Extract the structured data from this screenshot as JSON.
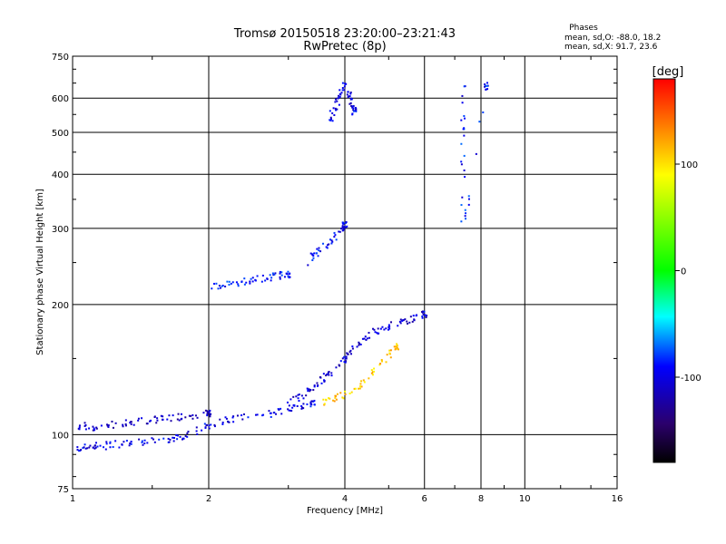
{
  "chart_data": {
    "type": "scatter",
    "title": "Tromsø 20150518 23:20:00–23:21:43",
    "subtitle": "RwPretec (8p)",
    "xlabel": "Frequency [MHz]",
    "ylabel": "Stationary phase Virtual Height [km]",
    "xscale": "log",
    "yscale": "log",
    "xlim": [
      1,
      16
    ],
    "ylim": [
      75,
      750
    ],
    "xticks": [
      1,
      2,
      4,
      6,
      8,
      10,
      16
    ],
    "yticks": [
      75,
      100,
      200,
      300,
      400,
      500,
      600,
      750
    ],
    "grid": true,
    "phase_note": {
      "title": "Phases",
      "line1": "mean, sd,O: -88.0, 18.2",
      "line2": "mean, sd,X:  91.7, 23.6"
    },
    "colorbar": {
      "label": "[deg]",
      "range": [
        -180,
        180
      ],
      "ticks": [
        100,
        0,
        -100
      ],
      "colors": [
        "#ff0000",
        "#ffff00",
        "#00ff00",
        "#00ffff",
        "#0000ff",
        "#2b006b",
        "#000000"
      ]
    },
    "series": [
      {
        "x": [
          1.02,
          1.08,
          1.15,
          1.25,
          1.4,
          1.55,
          1.7,
          1.85,
          2.0,
          2.2,
          2.5,
          2.8,
          3.1,
          3.4
        ],
        "y": [
          93,
          94,
          94,
          95,
          96,
          97,
          98,
          101,
          105,
          108,
          110,
          112,
          116,
          118
        ],
        "phase": -100
      },
      {
        "x": [
          1.02,
          1.1,
          1.2,
          1.35,
          1.5,
          1.65,
          1.8,
          2.0
        ],
        "y": [
          105,
          104,
          105,
          107,
          108,
          109,
          110,
          112
        ],
        "phase": -110
      },
      {
        "x": [
          2.05,
          2.2,
          2.4,
          2.6,
          2.8,
          3.0
        ],
        "y": [
          221,
          223,
          226,
          229,
          232,
          235
        ],
        "phase": -90
      },
      {
        "x": [
          3.0,
          3.2,
          3.4,
          3.6,
          3.8,
          4.0,
          4.2,
          4.5,
          4.8,
          5.2,
          5.6,
          6.0
        ],
        "y": [
          118,
          122,
          128,
          135,
          140,
          150,
          160,
          170,
          175,
          180,
          185,
          190
        ],
        "phase": -105
      },
      {
        "x": [
          3.55,
          3.8,
          4.1,
          4.4,
          4.8,
          5.2
        ],
        "y": [
          119,
          121,
          125,
          132,
          145,
          160
        ],
        "phase": 110
      },
      {
        "x": [
          3.7,
          3.8,
          3.9,
          4.0,
          4.1,
          4.2
        ],
        "y": [
          530,
          570,
          610,
          640,
          600,
          560
        ],
        "phase": -100
      },
      {
        "x": [
          3.3,
          3.5,
          3.7,
          3.9,
          4.0
        ],
        "y": [
          250,
          265,
          280,
          295,
          305
        ],
        "phase": -95
      },
      {
        "x": [
          7.3,
          7.3,
          7.3,
          8.2
        ],
        "y": [
          650,
          500,
          300,
          640
        ],
        "phase": -90
      }
    ]
  }
}
